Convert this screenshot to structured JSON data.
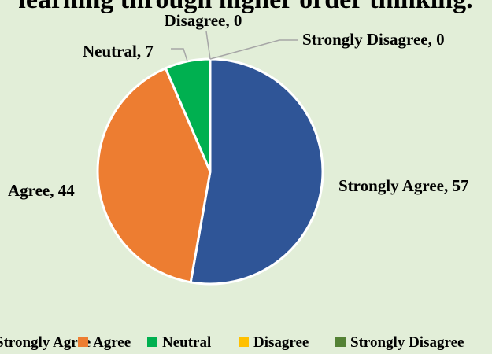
{
  "chart_data": {
    "type": "pie",
    "title": "learning through higher order thinking.",
    "categories": [
      "Strongly Agree",
      "Agree",
      "Neutral",
      "Disagree",
      "Strongly Disagree"
    ],
    "values": [
      57,
      44,
      7,
      0,
      0
    ],
    "colors": [
      "#2f5597",
      "#ed7d31",
      "#00b050",
      "#ffc000",
      "#548235"
    ],
    "data_labels": [
      "Strongly Agree, 57",
      "Agree, 44",
      "Neutral, 7",
      "Disagree, 0",
      "Strongly Disagree, 0"
    ],
    "legend_position": "bottom",
    "slice_border_color": "#ffffff"
  }
}
